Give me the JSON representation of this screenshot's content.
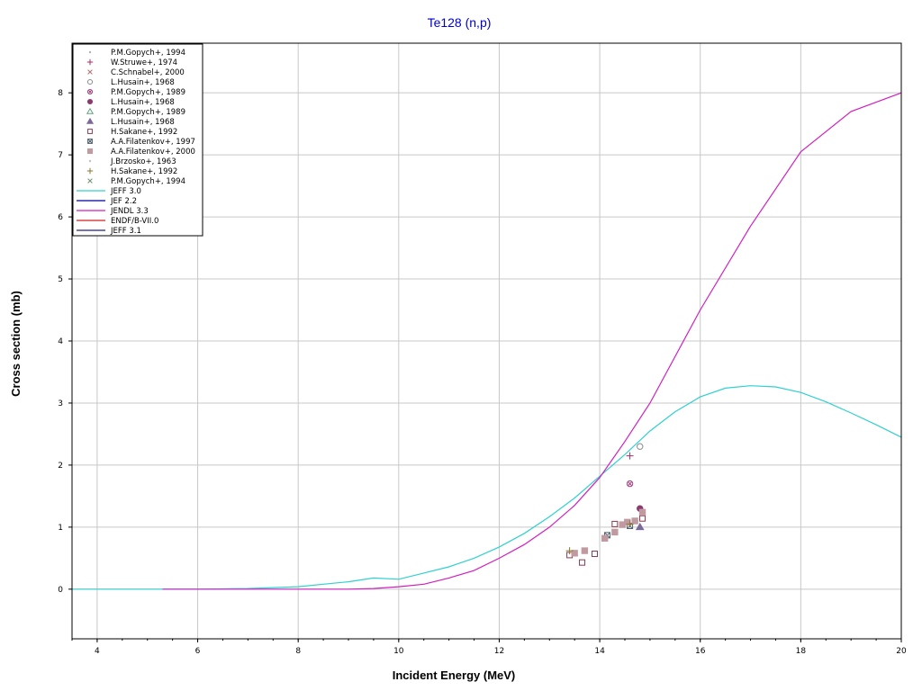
{
  "chart_data": {
    "type": "scatter",
    "title": "Te128 (n,p)",
    "xlabel": "Incident Energy (MeV)",
    "ylabel": "Cross section (mb)",
    "xlim": [
      3.5,
      20
    ],
    "ylim": [
      -0.8,
      8.8
    ],
    "xticks": [
      4,
      6,
      8,
      10,
      12,
      14,
      16,
      18,
      20
    ],
    "yticks": [
      0,
      1,
      2,
      3,
      4,
      5,
      6,
      7,
      8
    ],
    "grid": true,
    "legend_position": "top-left",
    "scatter_series": [
      {
        "name": "P.M.Gopych+, 1994",
        "marker": "dot",
        "color": "#b0b0b0",
        "points": []
      },
      {
        "name": "W.Struwe+, 1974",
        "marker": "plus",
        "color": "#a0306e",
        "points": [
          [
            14.6,
            2.15
          ]
        ]
      },
      {
        "name": "C.Schnabel+, 2000",
        "marker": "x",
        "color": "#b07070",
        "points": []
      },
      {
        "name": "L.Husain+, 1968",
        "marker": "circle-open",
        "color": "#8a8a8a",
        "points": [
          [
            14.8,
            2.3
          ]
        ]
      },
      {
        "name": "P.M.Gopych+, 1989",
        "marker": "circle-x",
        "color": "#a04080",
        "points": [
          [
            14.6,
            1.7
          ]
        ]
      },
      {
        "name": "L.Husain+, 1968",
        "marker": "circle-filled",
        "color": "#8b3a70",
        "points": [
          [
            14.8,
            1.3
          ]
        ]
      },
      {
        "name": "P.M.Gopych+, 1989",
        "marker": "triangle-open",
        "color": "#60a080",
        "points": []
      },
      {
        "name": "L.Husain+, 1968",
        "marker": "triangle-filled",
        "color": "#7a6a9a",
        "points": [
          [
            14.8,
            1.0
          ]
        ]
      },
      {
        "name": "H.Sakane+, 1992",
        "marker": "square-open",
        "color": "#8b3a50",
        "points": [
          [
            13.4,
            0.55
          ],
          [
            13.65,
            0.43
          ],
          [
            13.9,
            0.57
          ],
          [
            14.3,
            1.05
          ],
          [
            14.85,
            1.14
          ]
        ]
      },
      {
        "name": "A.A.Filatenkov+, 1997",
        "marker": "square-x",
        "color": "#506070",
        "points": [
          [
            14.15,
            0.87
          ],
          [
            14.6,
            1.02
          ]
        ]
      },
      {
        "name": "A.A.Filatenkov+, 2000",
        "marker": "square-filled",
        "color": "#c09aa0",
        "points": [
          [
            13.5,
            0.58
          ],
          [
            13.7,
            0.62
          ],
          [
            14.1,
            0.82
          ],
          [
            14.3,
            0.92
          ],
          [
            14.45,
            1.04
          ],
          [
            14.55,
            1.08
          ],
          [
            14.7,
            1.1
          ],
          [
            14.85,
            1.24
          ]
        ]
      },
      {
        "name": "J.Brzosko+, 1963",
        "marker": "dot",
        "color": "#c0c0c0",
        "points": []
      },
      {
        "name": "H.Sakane+, 1992",
        "marker": "plus",
        "color": "#8a7a30",
        "points": [
          [
            13.4,
            0.62
          ],
          [
            14.6,
            1.05
          ]
        ]
      },
      {
        "name": "P.M.Gopych+, 1994",
        "marker": "x",
        "color": "#709070",
        "points": []
      }
    ],
    "line_series": [
      {
        "name": "JEFF 3.0",
        "color": "#30d0d0",
        "x": [
          3.5,
          5,
          6,
          7,
          8,
          8.5,
          9,
          9.5,
          10,
          10.5,
          11,
          11.5,
          12,
          12.5,
          13,
          13.5,
          14,
          14.5,
          15,
          15.5,
          16,
          16.5,
          17,
          17.5,
          18,
          18.5,
          19,
          19.5,
          20
        ],
        "y": [
          0,
          0,
          0,
          0.01,
          0.04,
          0.08,
          0.12,
          0.18,
          0.16,
          0.26,
          0.36,
          0.5,
          0.68,
          0.9,
          1.17,
          1.47,
          1.82,
          2.17,
          2.55,
          2.86,
          3.1,
          3.24,
          3.28,
          3.26,
          3.17,
          3.02,
          2.84,
          2.65,
          2.45
        ]
      },
      {
        "name": "JEF 2.2",
        "color": "#0000a0",
        "x": [],
        "y": []
      },
      {
        "name": "JENDL 3.3",
        "color": "#d020c0",
        "x": [
          5.3,
          6,
          7,
          8,
          9,
          9.5,
          10,
          10.5,
          11,
          11.5,
          12,
          12.5,
          13,
          13.5,
          14,
          14.5,
          15,
          16,
          17,
          18,
          19,
          20
        ],
        "y": [
          0,
          0,
          0,
          0,
          0,
          0.01,
          0.04,
          0.08,
          0.18,
          0.3,
          0.5,
          0.72,
          1.0,
          1.35,
          1.8,
          2.38,
          3.0,
          4.5,
          5.85,
          7.05,
          7.7,
          8.0
        ]
      },
      {
        "name": "ENDF/B-VII.0",
        "color": "#d02020",
        "x": [],
        "y": []
      },
      {
        "name": "JEFF 3.1",
        "color": "#202080",
        "x": [],
        "y": []
      }
    ]
  }
}
